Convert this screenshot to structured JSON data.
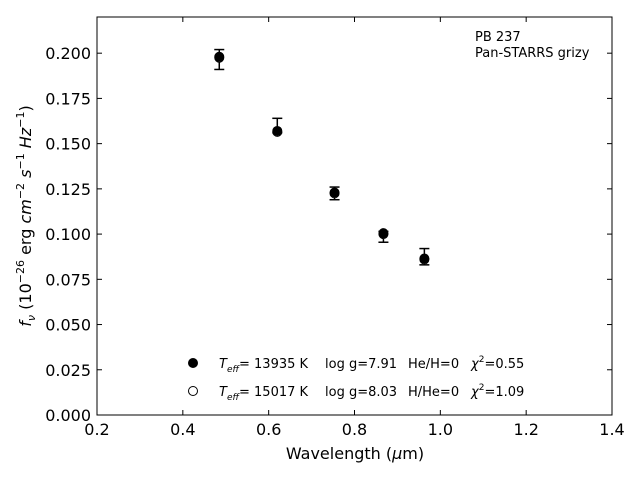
{
  "chart_data": {
    "type": "scatter",
    "title": "",
    "xlabel": "Wavelength (μm)",
    "ylabel": "f_ν (10^-26 erg cm^-2 s^-1 Hz^-1)",
    "xlim": [
      0.2,
      1.4
    ],
    "ylim": [
      0.0,
      0.22
    ],
    "x_ticks": [
      "0.2",
      "0.4",
      "0.6",
      "0.8",
      "1.0",
      "1.2",
      "1.4"
    ],
    "y_ticks": [
      "0.000",
      "0.025",
      "0.050",
      "0.075",
      "0.100",
      "0.125",
      "0.150",
      "0.175",
      "0.200"
    ],
    "grid": false,
    "annotation": {
      "line1": "PB 237",
      "line2": "Pan-STARRS grizy"
    },
    "observed": {
      "x": [
        0.4849,
        0.6201,
        0.7535,
        0.8674,
        0.9628
      ],
      "y": [
        0.1965,
        0.1585,
        0.1225,
        0.0995,
        0.0875
      ],
      "yerr_low": [
        0.0055,
        0.0025,
        0.0035,
        0.004,
        0.0045
      ],
      "yerr_high": [
        0.0055,
        0.0055,
        0.0035,
        0.002,
        0.0045
      ]
    },
    "series": [
      {
        "marker": "filled",
        "x": [
          0.4849,
          0.6201,
          0.7535,
          0.8674,
          0.9628
        ],
        "y": [
          0.198,
          0.157,
          0.123,
          0.1005,
          0.0865
        ],
        "legend": {
          "teff_value": "= 13935 K",
          "logg": "log g=7.91",
          "comp": "He/H=0",
          "chi2": "=0.55"
        }
      },
      {
        "marker": "open",
        "x": [
          0.4849,
          0.6201,
          0.7535,
          0.8674,
          0.9628
        ],
        "y": [
          0.1975,
          0.1565,
          0.1225,
          0.1,
          0.086
        ],
        "legend": {
          "teff_value": "= 15017 K",
          "logg": "log g=8.03",
          "comp": "H/He=0",
          "chi2": "=1.09"
        }
      }
    ],
    "legend_location": "lower-center"
  }
}
